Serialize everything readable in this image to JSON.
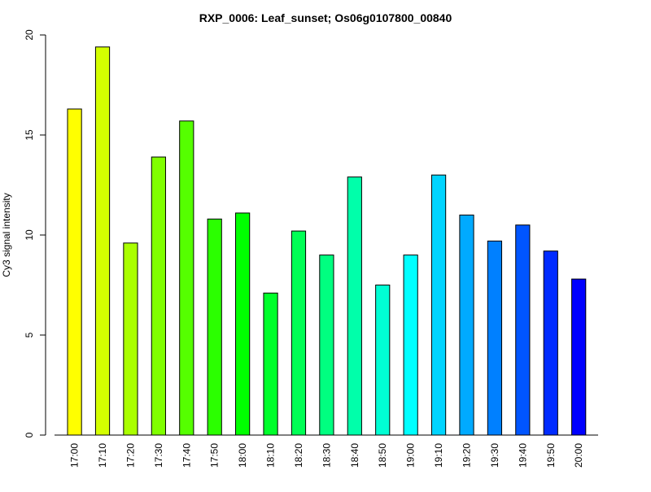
{
  "chart_data": {
    "type": "bar",
    "title": "RXP_0006: Leaf_sunset; Os06g0107800_00840",
    "xlabel": "",
    "ylabel": "Cy3 signal intensity",
    "ylim": [
      0,
      20
    ],
    "yticks": [
      0,
      5,
      10,
      15,
      20
    ],
    "categories": [
      "17:00",
      "17:10",
      "17:20",
      "17:30",
      "17:40",
      "17:50",
      "18:00",
      "18:10",
      "18:20",
      "18:30",
      "18:40",
      "18:50",
      "19:00",
      "19:10",
      "19:20",
      "19:30",
      "19:40",
      "19:50",
      "20:00"
    ],
    "values": [
      16.3,
      19.4,
      9.6,
      13.9,
      15.7,
      10.8,
      11.1,
      7.1,
      10.2,
      9.0,
      12.9,
      7.5,
      9.0,
      13.0,
      11.0,
      9.7,
      10.5,
      9.2,
      7.8
    ],
    "colors": [
      "#ffff00",
      "#d4ff00",
      "#aaff00",
      "#80ff00",
      "#55ff00",
      "#2bff00",
      "#00ff00",
      "#00ff2b",
      "#00ff55",
      "#00ff80",
      "#00ffaa",
      "#00ffd4",
      "#00ffff",
      "#00d4ff",
      "#00aaff",
      "#0080ff",
      "#0055ff",
      "#002bff",
      "#0000ff"
    ],
    "grid": false,
    "legend": "none"
  }
}
